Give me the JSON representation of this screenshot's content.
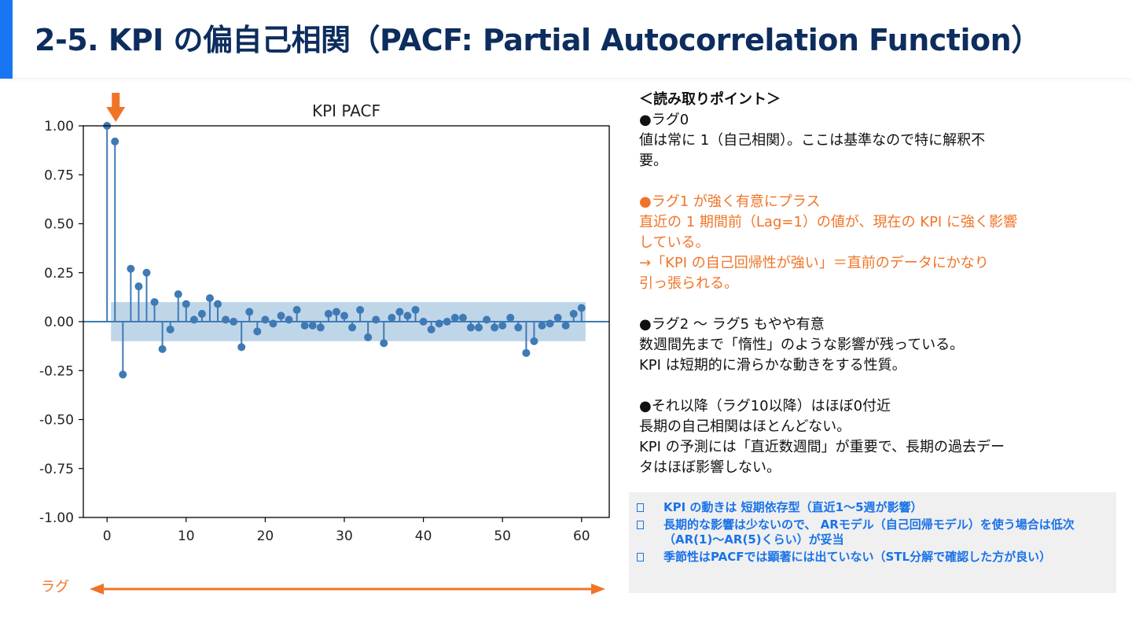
{
  "header": {
    "title": "2-5. KPI の偏自己相関（PACF: Partial Autocorrelation Function）"
  },
  "colors": {
    "accent": "#1976f2",
    "title": "#0d2d5e",
    "orange": "#f07427",
    "stem": "#3f7ab5",
    "band": "#aac8e2",
    "summary_text": "#1a73e8",
    "summary_bg": "#f0f0f0"
  },
  "chart_data": {
    "type": "stem",
    "title": "KPI PACF",
    "xlabel": "",
    "ylabel": "",
    "xlim": [
      -3,
      63.5
    ],
    "ylim": [
      -1.0,
      1.0
    ],
    "grid": false,
    "x_ticks": [
      0,
      10,
      20,
      30,
      40,
      50,
      60
    ],
    "y_ticks": [
      1.0,
      0.75,
      0.5,
      0.25,
      0.0,
      -0.25,
      -0.5,
      -0.75,
      -1.0
    ],
    "y_tick_labels": [
      "1.00",
      "0.75",
      "0.50",
      "0.25",
      "0.00",
      "-0.25",
      "-0.50",
      "-0.75",
      "-1.00"
    ],
    "confidence_band": [
      -0.1,
      0.1
    ],
    "band_x_range": [
      0.5,
      60.5
    ],
    "lags": [
      0,
      1,
      2,
      3,
      4,
      5,
      6,
      7,
      8,
      9,
      10,
      11,
      12,
      13,
      14,
      15,
      16,
      17,
      18,
      19,
      20,
      21,
      22,
      23,
      24,
      25,
      26,
      27,
      28,
      29,
      30,
      31,
      32,
      33,
      34,
      35,
      36,
      37,
      38,
      39,
      40,
      41,
      42,
      43,
      44,
      45,
      46,
      47,
      48,
      49,
      50,
      51,
      52,
      53,
      54,
      55,
      56,
      57,
      58,
      59,
      60
    ],
    "values": [
      1.0,
      0.92,
      -0.27,
      0.27,
      0.18,
      0.25,
      0.1,
      -0.14,
      -0.04,
      0.14,
      0.09,
      0.01,
      0.04,
      0.12,
      0.09,
      0.01,
      0.0,
      -0.13,
      0.05,
      -0.05,
      0.01,
      -0.01,
      0.03,
      0.01,
      0.06,
      -0.02,
      -0.02,
      -0.03,
      0.04,
      0.05,
      0.03,
      -0.03,
      0.06,
      -0.08,
      0.01,
      -0.11,
      0.02,
      0.05,
      0.03,
      0.06,
      0.0,
      -0.04,
      -0.01,
      0.0,
      0.02,
      0.02,
      -0.03,
      -0.03,
      0.01,
      -0.03,
      -0.02,
      0.02,
      -0.03,
      -0.16,
      -0.1,
      -0.02,
      -0.01,
      0.02,
      -0.02,
      0.04,
      0.07
    ]
  },
  "lag_axis_label": "ラグ",
  "reading_points": {
    "heading": "＜読み取りポイント＞",
    "lag0_title": "●ラグ0",
    "lag0_body1": "値は常に 1（自己相関）。ここは基準なので特に解釈不",
    "lag0_body2": "要。",
    "lag1_title": "●ラグ1 が強く有意にプラス",
    "lag1_body1": "直近の 1 期間前（Lag=1）の値が、現在の KPI に強く影響",
    "lag1_body2": "している。",
    "lag1_body3": "→「KPI の自己回帰性が強い」＝直前のデータにかなり",
    "lag1_body4": "引っ張られる。",
    "lag25_title": "●ラグ2 〜 ラグ5 もやや有意",
    "lag25_body1": "数週間先まで「惰性」のような影響が残っている。",
    "lag25_body2": "KPI は短期的に滑らかな動きをする性質。",
    "lag10_title": "●それ以降（ラグ10以降）はほぼ0付近",
    "lag10_body1": "長期の自己相関はほとんどない。",
    "lag10_body2": "KPI の予測には「直近数週間」が重要で、長期の過去デー",
    "lag10_body3": "タはほぼ影響しない。"
  },
  "summary": {
    "items": [
      "KPI の動きは 短期依存型（直近1〜5週が影響）",
      "長期的な影響は少ないので、 ARモデル（自己回帰モデル）を使う場合は低次（AR(1)〜AR(5)くらい）が妥当",
      "季節性はPACFでは顕著には出ていない（STL分解で確認した方が良い）"
    ]
  }
}
